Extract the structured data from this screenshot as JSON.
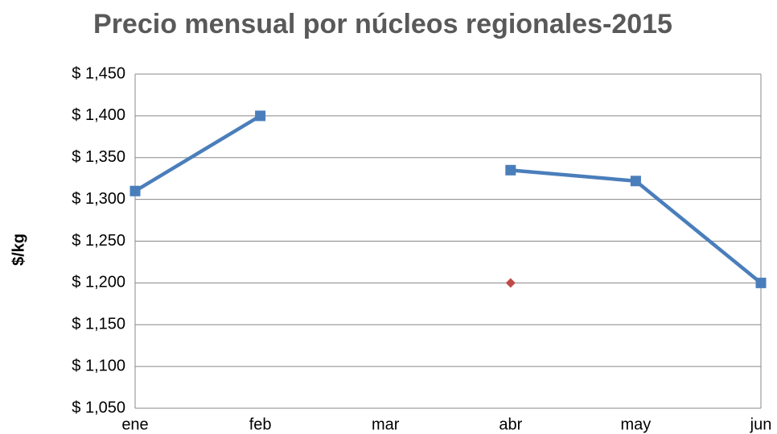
{
  "chart_data": {
    "type": "line",
    "title": "Precio mensual por núcleos regionales-2015",
    "y_label": "$/kg",
    "categories": [
      "ene",
      "feb",
      "mar",
      "abr",
      "may",
      "jun"
    ],
    "series": [
      {
        "color": "#4a7ebb",
        "marker": "square",
        "values": [
          1310,
          1400,
          null,
          1335,
          1322,
          1200
        ]
      },
      {
        "color": "#be4b48",
        "marker": "diamond",
        "values": [
          null,
          null,
          null,
          1200,
          null,
          null
        ]
      }
    ],
    "ylim": [
      1050,
      1450
    ],
    "yticks": [
      {
        "value": 1050,
        "label": "$ 1,050"
      },
      {
        "value": 1100,
        "label": "$ 1,100"
      },
      {
        "value": 1150,
        "label": "$ 1,150"
      },
      {
        "value": 1200,
        "label": "$ 1,200"
      },
      {
        "value": 1250,
        "label": "$ 1,250"
      },
      {
        "value": 1300,
        "label": "$ 1,300"
      },
      {
        "value": 1350,
        "label": "$ 1,350"
      },
      {
        "value": 1400,
        "label": "$ 1,400"
      },
      {
        "value": 1450,
        "label": "$ 1,450"
      }
    ],
    "grid": true
  }
}
